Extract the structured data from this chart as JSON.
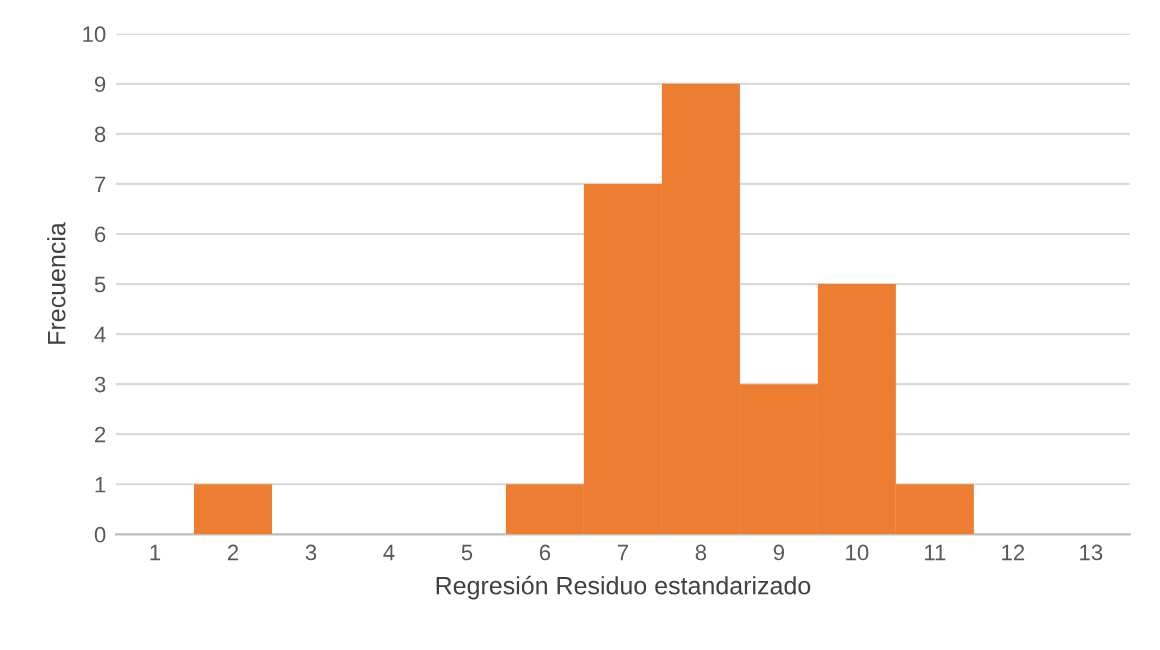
{
  "chart_data": {
    "type": "bar",
    "categories": [
      "1",
      "2",
      "3",
      "4",
      "5",
      "6",
      "7",
      "8",
      "9",
      "10",
      "11",
      "12",
      "13"
    ],
    "values": [
      0,
      1,
      0,
      0,
      0,
      1,
      7,
      9,
      3,
      5,
      1,
      0,
      0
    ],
    "color": "#ed7d31",
    "xlabel": "Regresión Residuo estandarizado",
    "ylabel": "Frecuencia",
    "ylim": [
      0,
      10
    ],
    "yticks": [
      0,
      1,
      2,
      3,
      4,
      5,
      6,
      7,
      8,
      9,
      10
    ],
    "grid": "y"
  }
}
